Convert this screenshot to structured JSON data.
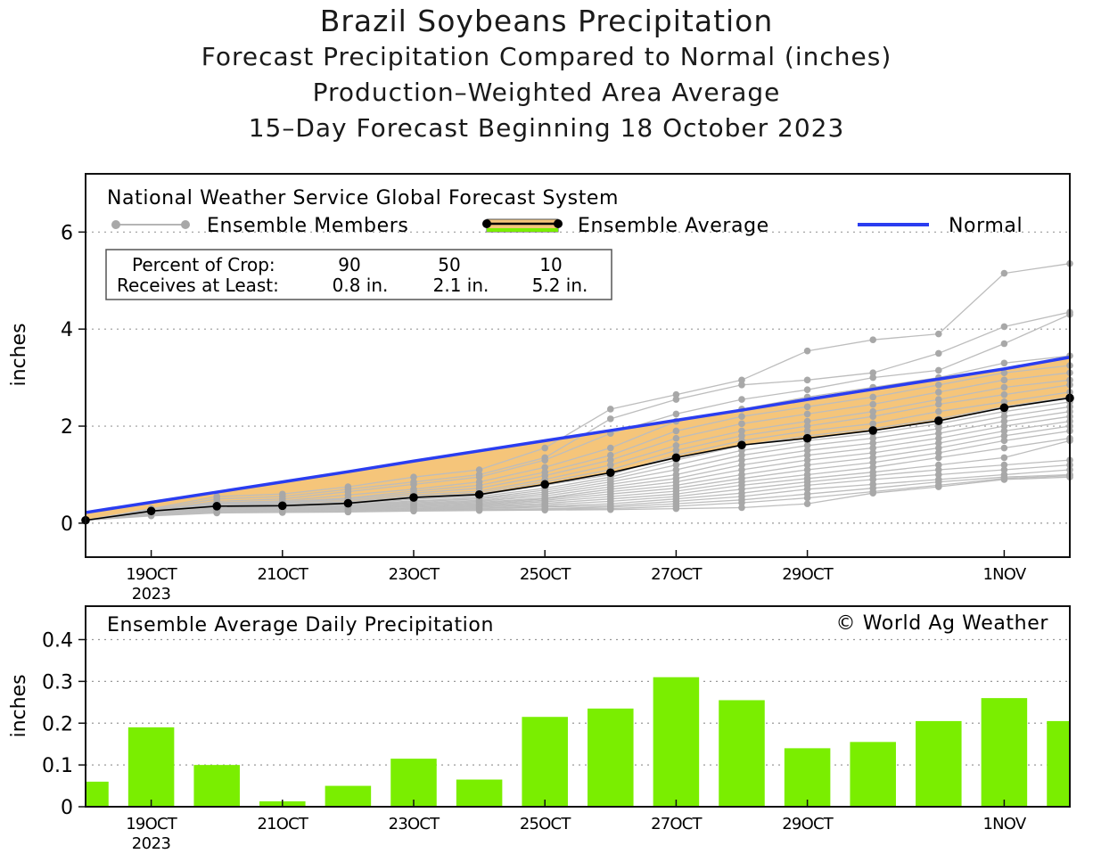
{
  "titles": {
    "main": "Brazil Soybeans Precipitation",
    "sub1": "Forecast Precipitation Compared to Normal (inches)",
    "sub2": "Production–Weighted Area Average",
    "sub3": "15–Day Forecast Beginning 18 October 2023"
  },
  "legend": {
    "source": "National Weather Service Global Forecast System",
    "members": "Ensemble Members",
    "average": "Ensemble Average",
    "normal": "Normal"
  },
  "crop_table": {
    "row1_label": "Percent of Crop:",
    "row2_label": "Receives at Least:",
    "percents": [
      "90",
      "50",
      "10"
    ],
    "amounts": [
      "0.8 in.",
      "2.1 in.",
      "5.2 in."
    ]
  },
  "copyright": "© World Ag Weather",
  "bottom_title": "Ensemble Average Daily Precipitation",
  "colors": {
    "normal": "#2a3df0",
    "average_band": "#f5c57a",
    "bars": "#7aee00",
    "members": "#bdbdbd",
    "member_dots": "#a8a8a8"
  },
  "chart_data": [
    {
      "type": "line",
      "ylabel": "inches",
      "ylim": [
        -0.7,
        7.2
      ],
      "yticks": [
        0,
        2,
        4,
        6
      ],
      "xlim": [
        18,
        33
      ],
      "x": [
        18,
        19,
        20,
        21,
        22,
        23,
        24,
        25,
        26,
        27,
        28,
        29,
        30,
        31,
        32,
        33
      ],
      "xticks": [
        {
          "x": 19,
          "label": "19OCT",
          "year": "2023"
        },
        {
          "x": 21,
          "label": "21OCT"
        },
        {
          "x": 23,
          "label": "23OCT"
        },
        {
          "x": 25,
          "label": "25OCT"
        },
        {
          "x": 27,
          "label": "27OCT"
        },
        {
          "x": 29,
          "label": "29OCT"
        },
        {
          "x": 32,
          "label": "1NOV"
        }
      ],
      "grid": "dotted horizontal",
      "legend": "top-left",
      "series": [
        {
          "name": "Normal",
          "values": [
            0.22,
            0.43,
            0.64,
            0.85,
            1.06,
            1.28,
            1.49,
            1.7,
            1.91,
            2.12,
            2.33,
            2.55,
            2.76,
            2.97,
            3.18,
            3.42
          ]
        },
        {
          "name": "Ensemble Average",
          "values": [
            0.06,
            0.25,
            0.35,
            0.36,
            0.41,
            0.53,
            0.59,
            0.8,
            1.04,
            1.35,
            1.61,
            1.75,
            1.91,
            2.11,
            2.38,
            2.58
          ]
        }
      ],
      "ensemble_members": [
        [
          0.06,
          0.3,
          0.55,
          0.6,
          0.75,
          0.95,
          1.1,
          1.55,
          2.35,
          2.65,
          2.95,
          3.55,
          3.78,
          3.9,
          5.15,
          5.35
        ],
        [
          0.06,
          0.28,
          0.5,
          0.55,
          0.7,
          0.85,
          1.0,
          1.35,
          2.15,
          2.55,
          2.85,
          2.95,
          3.1,
          3.5,
          4.05,
          4.35
        ],
        [
          0.06,
          0.26,
          0.45,
          0.5,
          0.65,
          0.8,
          0.95,
          1.3,
          1.85,
          2.25,
          2.55,
          2.75,
          3.0,
          3.15,
          3.7,
          4.3
        ],
        [
          0.06,
          0.26,
          0.42,
          0.46,
          0.58,
          0.7,
          0.85,
          1.15,
          1.55,
          2.1,
          2.35,
          2.6,
          2.8,
          3.0,
          3.3,
          3.45
        ],
        [
          0.06,
          0.25,
          0.4,
          0.44,
          0.52,
          0.66,
          0.78,
          1.05,
          1.4,
          1.9,
          2.2,
          2.4,
          2.6,
          2.85,
          3.1,
          3.25
        ],
        [
          0.06,
          0.25,
          0.38,
          0.42,
          0.5,
          0.62,
          0.72,
          0.98,
          1.3,
          1.75,
          2.05,
          2.25,
          2.45,
          2.7,
          2.95,
          3.1
        ],
        [
          0.06,
          0.24,
          0.37,
          0.4,
          0.47,
          0.58,
          0.66,
          0.9,
          1.2,
          1.6,
          1.9,
          2.1,
          2.3,
          2.55,
          2.8,
          2.95
        ],
        [
          0.06,
          0.24,
          0.36,
          0.38,
          0.44,
          0.55,
          0.62,
          0.85,
          1.1,
          1.5,
          1.8,
          2.0,
          2.2,
          2.45,
          2.65,
          2.85
        ],
        [
          0.06,
          0.23,
          0.35,
          0.37,
          0.42,
          0.52,
          0.58,
          0.78,
          1.0,
          1.4,
          1.7,
          1.9,
          2.05,
          2.3,
          2.5,
          2.7
        ],
        [
          0.06,
          0.23,
          0.34,
          0.36,
          0.4,
          0.49,
          0.55,
          0.72,
          0.95,
          1.3,
          1.6,
          1.8,
          1.95,
          2.15,
          2.4,
          2.6
        ],
        [
          0.06,
          0.22,
          0.33,
          0.35,
          0.38,
          0.46,
          0.52,
          0.68,
          0.9,
          1.2,
          1.5,
          1.7,
          1.85,
          2.05,
          2.3,
          2.5
        ],
        [
          0.06,
          0.22,
          0.32,
          0.34,
          0.36,
          0.44,
          0.5,
          0.64,
          0.85,
          1.1,
          1.4,
          1.6,
          1.75,
          1.95,
          2.2,
          2.4
        ],
        [
          0.06,
          0.21,
          0.31,
          0.33,
          0.35,
          0.42,
          0.47,
          0.6,
          0.8,
          1.0,
          1.3,
          1.5,
          1.65,
          1.85,
          2.1,
          2.3
        ],
        [
          0.06,
          0.21,
          0.3,
          0.32,
          0.34,
          0.4,
          0.45,
          0.56,
          0.75,
          0.92,
          1.2,
          1.4,
          1.55,
          1.75,
          2.0,
          2.2
        ],
        [
          0.06,
          0.2,
          0.3,
          0.31,
          0.33,
          0.38,
          0.43,
          0.52,
          0.7,
          0.85,
          1.1,
          1.3,
          1.45,
          1.65,
          1.9,
          2.1
        ],
        [
          0.06,
          0.2,
          0.29,
          0.3,
          0.32,
          0.36,
          0.41,
          0.5,
          0.65,
          0.78,
          1.0,
          1.2,
          1.35,
          1.55,
          1.8,
          2.0
        ],
        [
          0.06,
          0.19,
          0.28,
          0.29,
          0.31,
          0.34,
          0.39,
          0.47,
          0.6,
          0.72,
          0.92,
          1.1,
          1.25,
          1.45,
          1.7,
          1.9
        ],
        [
          0.06,
          0.19,
          0.27,
          0.28,
          0.3,
          0.33,
          0.37,
          0.44,
          0.55,
          0.66,
          0.85,
          1.0,
          1.15,
          1.35,
          1.55,
          1.75
        ],
        [
          0.06,
          0.18,
          0.26,
          0.27,
          0.29,
          0.31,
          0.35,
          0.41,
          0.5,
          0.6,
          0.78,
          0.92,
          1.05,
          1.2,
          1.35,
          1.7
        ],
        [
          0.06,
          0.18,
          0.25,
          0.26,
          0.28,
          0.3,
          0.33,
          0.38,
          0.45,
          0.55,
          0.7,
          0.85,
          0.98,
          1.1,
          1.2,
          1.3
        ],
        [
          0.06,
          0.17,
          0.25,
          0.25,
          0.27,
          0.29,
          0.31,
          0.35,
          0.4,
          0.5,
          0.62,
          0.78,
          0.9,
          1.0,
          1.1,
          1.2
        ],
        [
          0.06,
          0.17,
          0.24,
          0.24,
          0.26,
          0.28,
          0.3,
          0.33,
          0.36,
          0.45,
          0.55,
          0.7,
          0.8,
          0.9,
          1.0,
          1.1
        ],
        [
          0.06,
          0.16,
          0.23,
          0.24,
          0.25,
          0.27,
          0.28,
          0.3,
          0.33,
          0.4,
          0.48,
          0.6,
          0.72,
          0.85,
          0.95,
          1.0
        ],
        [
          0.06,
          0.16,
          0.22,
          0.23,
          0.24,
          0.26,
          0.27,
          0.29,
          0.3,
          0.35,
          0.42,
          0.52,
          0.65,
          0.78,
          0.92,
          0.98
        ],
        [
          0.06,
          0.15,
          0.21,
          0.22,
          0.23,
          0.25,
          0.26,
          0.27,
          0.28,
          0.3,
          0.32,
          0.4,
          0.62,
          0.75,
          0.9,
          0.95
        ]
      ]
    },
    {
      "type": "bar",
      "title": "Ensemble Average Daily Precipitation",
      "ylabel": "inches",
      "ylim": [
        0,
        0.48
      ],
      "yticks": [
        0,
        0.1,
        0.2,
        0.3,
        0.4
      ],
      "ytick_labels": [
        "0",
        "0.1",
        "0.2",
        "0.3",
        "0.4"
      ],
      "xlim": [
        18,
        33
      ],
      "x": [
        18,
        19,
        20,
        21,
        22,
        23,
        24,
        25,
        26,
        27,
        28,
        29,
        30,
        31,
        32,
        33
      ],
      "values": [
        0.06,
        0.19,
        0.1,
        0.013,
        0.05,
        0.115,
        0.065,
        0.215,
        0.235,
        0.31,
        0.255,
        0.14,
        0.155,
        0.205,
        0.26,
        0.205
      ],
      "xticks": [
        {
          "x": 19,
          "label": "19OCT",
          "year": "2023"
        },
        {
          "x": 21,
          "label": "21OCT"
        },
        {
          "x": 23,
          "label": "23OCT"
        },
        {
          "x": 25,
          "label": "25OCT"
        },
        {
          "x": 27,
          "label": "27OCT"
        },
        {
          "x": 29,
          "label": "29OCT"
        },
        {
          "x": 32,
          "label": "1NOV"
        }
      ],
      "grid": "dotted horizontal"
    }
  ]
}
